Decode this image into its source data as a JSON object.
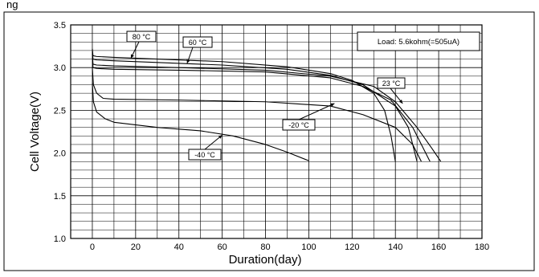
{
  "chart_data": {
    "type": "line",
    "title_fragment": "ng",
    "xlabel": "Duration(day)",
    "ylabel": "Cell Voltage(V)",
    "xlim": [
      -10,
      180
    ],
    "ylim": [
      1.0,
      3.5
    ],
    "x_ticks": [
      0,
      20,
      40,
      60,
      80,
      100,
      120,
      140,
      160,
      180
    ],
    "y_ticks": [
      1.0,
      1.5,
      2.0,
      2.5,
      3.0,
      3.5
    ],
    "grid": true,
    "legend_box": "Load: 5.6kohm(=505uA)",
    "series": [
      {
        "name": "80 °C",
        "points": [
          [
            0,
            3.22
          ],
          [
            0.3,
            3.14
          ],
          [
            2,
            3.13
          ],
          [
            10,
            3.12
          ],
          [
            30,
            3.1
          ],
          [
            60,
            3.07
          ],
          [
            90,
            3.01
          ],
          [
            110,
            2.93
          ],
          [
            120,
            2.85
          ],
          [
            130,
            2.7
          ],
          [
            135,
            2.5
          ],
          [
            138,
            2.2
          ],
          [
            140,
            1.9
          ]
        ]
      },
      {
        "name": "60 °C",
        "points": [
          [
            0,
            3.2
          ],
          [
            0.3,
            3.1
          ],
          [
            2,
            3.09
          ],
          [
            10,
            3.08
          ],
          [
            30,
            3.06
          ],
          [
            60,
            3.03
          ],
          [
            90,
            2.98
          ],
          [
            110,
            2.91
          ],
          [
            125,
            2.8
          ],
          [
            140,
            2.55
          ],
          [
            146,
            2.3
          ],
          [
            150,
            1.9
          ]
        ]
      },
      {
        "name": "23 °C",
        "points": [
          [
            0,
            3.18
          ],
          [
            0.3,
            3.04
          ],
          [
            2,
            3.03
          ],
          [
            10,
            3.02
          ],
          [
            40,
            3.0
          ],
          [
            80,
            2.97
          ],
          [
            110,
            2.9
          ],
          [
            130,
            2.78
          ],
          [
            140,
            2.6
          ],
          [
            150,
            2.3
          ],
          [
            157,
            2.05
          ],
          [
            161,
            1.9
          ]
        ]
      },
      {
        "name": "",
        "points": [
          [
            0,
            3.16
          ],
          [
            0.3,
            3.0
          ],
          [
            2,
            2.99
          ],
          [
            10,
            2.98
          ],
          [
            40,
            2.97
          ],
          [
            80,
            2.95
          ],
          [
            110,
            2.88
          ],
          [
            125,
            2.78
          ],
          [
            138,
            2.62
          ],
          [
            148,
            2.3
          ],
          [
            153,
            2.05
          ],
          [
            156,
            1.9
          ]
        ]
      },
      {
        "name": "-20 °C",
        "points": [
          [
            0,
            3.0
          ],
          [
            0.5,
            2.8
          ],
          [
            2,
            2.7
          ],
          [
            5,
            2.64
          ],
          [
            10,
            2.63
          ],
          [
            40,
            2.62
          ],
          [
            80,
            2.6
          ],
          [
            110,
            2.55
          ],
          [
            125,
            2.45
          ],
          [
            140,
            2.3
          ],
          [
            148,
            2.1
          ],
          [
            152,
            1.9
          ]
        ]
      },
      {
        "name": "-40 °C",
        "points": [
          [
            0,
            2.82
          ],
          [
            0.5,
            2.6
          ],
          [
            2,
            2.48
          ],
          [
            6,
            2.4
          ],
          [
            10,
            2.36
          ],
          [
            30,
            2.3
          ],
          [
            50,
            2.26
          ],
          [
            65,
            2.2
          ],
          [
            80,
            2.1
          ],
          [
            90,
            2.01
          ],
          [
            100,
            1.91
          ]
        ]
      }
    ],
    "callouts": [
      {
        "text": "80 °C",
        "series": 0
      },
      {
        "text": "60 °C",
        "series": 1
      },
      {
        "text": "23 °C",
        "series": 2
      },
      {
        "text": "-20 °C",
        "series": 4
      },
      {
        "text": "-40 °C",
        "series": 5
      }
    ]
  }
}
